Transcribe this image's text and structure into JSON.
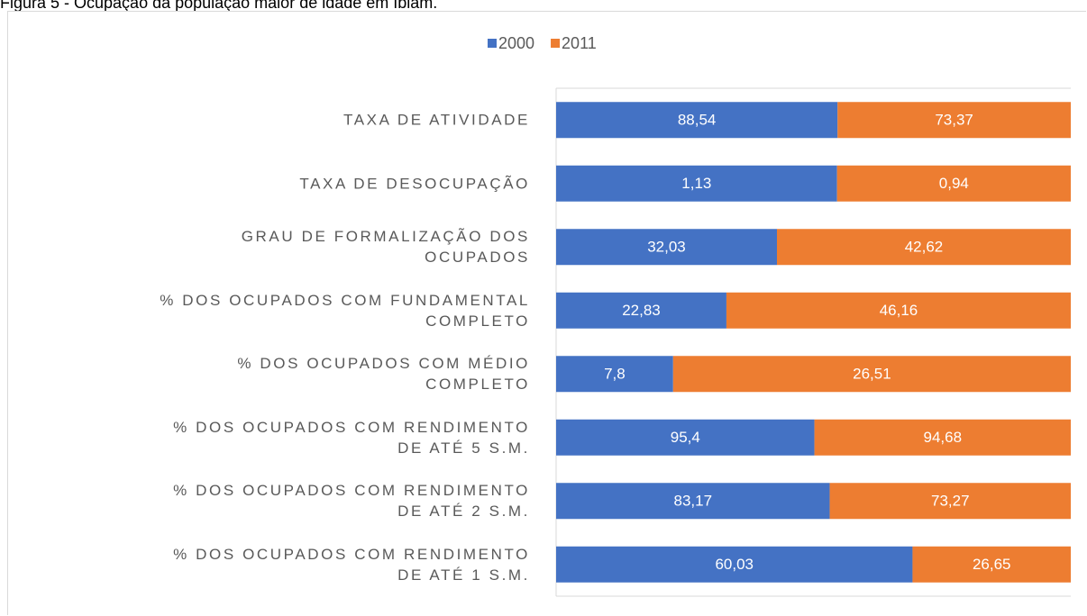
{
  "chart_data": {
    "type": "stacked_bar_100_horizontal",
    "title": "Figura 5 - Ocupação da população maior de idade em Ibiam.",
    "categories": [
      "TAXA DE ATIVIDADE",
      "TAXA DE DESOCUPAÇÃO",
      "GRAU DE FORMALIZAÇÃO DOS\nOCUPADOS",
      "% DOS OCUPADOS COM FUNDAMENTAL\nCOMPLETO",
      "% DOS OCUPADOS COM MÉDIO\nCOMPLETO",
      "% DOS OCUPADOS COM RENDIMENTO\nDE ATÉ 5 S.M.",
      "% DOS OCUPADOS COM RENDIMENTO\nDE ATÉ 2 S.M.",
      "% DOS OCUPADOS COM RENDIMENTO\nDE ATÉ 1 S.M."
    ],
    "series": [
      {
        "name": "2000",
        "color": "#4472c4",
        "values": [
          88.54,
          1.13,
          32.03,
          22.83,
          7.8,
          95.4,
          83.17,
          60.03
        ],
        "value_labels": [
          "88,54",
          "1,13",
          "32,03",
          "22,83",
          "7,8",
          "95,4",
          "83,17",
          "60,03"
        ]
      },
      {
        "name": "2011",
        "color": "#ed7d31",
        "values": [
          73.37,
          0.94,
          42.62,
          46.16,
          26.51,
          94.68,
          73.27,
          26.65
        ],
        "value_labels": [
          "73,37",
          "0,94",
          "42,62",
          "46,16",
          "26,51",
          "94,68",
          "73,27",
          "26,65"
        ]
      }
    ],
    "legend": "top"
  }
}
